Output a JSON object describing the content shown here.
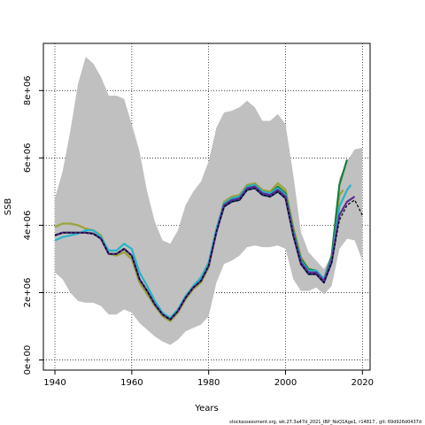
{
  "chart_data": {
    "type": "line",
    "title": "",
    "xlabel": "Years",
    "ylabel": "SSB",
    "xlim": [
      1937,
      2022
    ],
    "ylim": [
      -300000,
      9400000
    ],
    "x_ticks": [
      1940,
      1960,
      1980,
      2000,
      2020
    ],
    "y_ticks": [
      0,
      2000000,
      4000000,
      6000000,
      8000000
    ],
    "y_tick_labels": [
      "0e+00",
      "2e+06",
      "4e+06",
      "6e+06",
      "8e+06"
    ],
    "grid": true,
    "colors": {
      "band": "#c0c0c0",
      "main": "#000000",
      "retro_colors": [
        "#5c2d91",
        "#26b5c9",
        "#1a7d3a",
        "#9aa33a",
        "#1e3a7a"
      ]
    },
    "confidence_band": {
      "x": [
        1940,
        1942,
        1944,
        1946,
        1948,
        1950,
        1952,
        1954,
        1956,
        1958,
        1960,
        1962,
        1964,
        1966,
        1968,
        1970,
        1972,
        1974,
        1976,
        1978,
        1980,
        1982,
        1984,
        1986,
        1988,
        1990,
        1992,
        1994,
        1996,
        1998,
        2000,
        2002,
        2004,
        2006,
        2008,
        2010,
        2012,
        2014,
        2016,
        2018,
        2020
      ],
      "upper": [
        4800000,
        5600000,
        6800000,
        8200000,
        9000000,
        8800000,
        8400000,
        7850000,
        7850000,
        7750000,
        7000000,
        6200000,
        5000000,
        4100000,
        3550000,
        3450000,
        3850000,
        4600000,
        5000000,
        5300000,
        5900000,
        6900000,
        7350000,
        7400000,
        7500000,
        7700000,
        7500000,
        7100000,
        7100000,
        7300000,
        7000000,
        5500000,
        3800000,
        3200000,
        2950000,
        2700000,
        3100000,
        5400000,
        5900000,
        6250000,
        6300000
      ],
      "lower": [
        2600000,
        2400000,
        2000000,
        1750000,
        1700000,
        1700000,
        1600000,
        1350000,
        1350000,
        1500000,
        1400000,
        1100000,
        900000,
        700000,
        550000,
        450000,
        600000,
        850000,
        950000,
        1050000,
        1300000,
        2300000,
        2850000,
        2950000,
        3100000,
        3350000,
        3400000,
        3350000,
        3350000,
        3400000,
        3300000,
        2400000,
        2050000,
        2050000,
        2150000,
        1950000,
        2200000,
        3300000,
        3600000,
        3550000,
        2950000
      ]
    },
    "series": [
      {
        "x": [
          1940,
          1942,
          1944,
          1946,
          1948,
          1950,
          1952,
          1954,
          1956,
          1958,
          1960,
          1962,
          1964,
          1966,
          1968,
          1970,
          1972,
          1974,
          1976,
          1978,
          1980,
          1982,
          1984,
          1986,
          1988,
          1990,
          1992,
          1994,
          1996,
          1998,
          2000,
          2002,
          2004,
          2006,
          2008,
          2010,
          2012,
          2014,
          2016,
          2018,
          2020
        ],
        "values": [
          3700000,
          3780000,
          3780000,
          3780000,
          3780000,
          3750000,
          3600000,
          3150000,
          3150000,
          3300000,
          3100000,
          2400000,
          2050000,
          1650000,
          1350000,
          1200000,
          1450000,
          1850000,
          2150000,
          2350000,
          2800000,
          3800000,
          4550000,
          4700000,
          4750000,
          5050000,
          5100000,
          4900000,
          4850000,
          5000000,
          4800000,
          3700000,
          2850000,
          2550000,
          2550000,
          2300000,
          2900000,
          4150000,
          4600000,
          4750000,
          4300000
        ]
      },
      {
        "x": [
          1940,
          1942,
          1944,
          1946,
          1948,
          1950,
          1952,
          1954,
          1956,
          1958,
          1960,
          1962,
          1964,
          1966,
          1968,
          1970,
          1972,
          1974,
          1976,
          1978,
          1980,
          1982,
          1984,
          1986,
          1988,
          1990,
          1992,
          1994,
          1996,
          1998,
          2000,
          2002,
          2004,
          2006,
          2008,
          2010,
          2012,
          2014,
          2016,
          2018
        ],
        "values": [
          3700000,
          3780000,
          3780000,
          3780000,
          3780000,
          3750000,
          3600000,
          3150000,
          3150000,
          3300000,
          3100000,
          2400000,
          2050000,
          1650000,
          1350000,
          1200000,
          1450000,
          1850000,
          2150000,
          2350000,
          2800000,
          3800000,
          4600000,
          4750000,
          4800000,
          5100000,
          5150000,
          4950000,
          4900000,
          5050000,
          4850000,
          3750000,
          2900000,
          2600000,
          2600000,
          2350000,
          2950000,
          4300000,
          4700000,
          4850000
        ]
      },
      {
        "x": [
          1940,
          1942,
          1944,
          1946,
          1948,
          1950,
          1952,
          1954,
          1956,
          1958,
          1960,
          1962,
          1964,
          1966,
          1968,
          1970,
          1972,
          1974,
          1976,
          1978,
          1980,
          1982,
          1984,
          1986,
          1988,
          1990,
          1992,
          1994,
          1996,
          1998,
          2000,
          2002,
          2004,
          2006,
          2008,
          2010,
          2012,
          2014,
          2016,
          2017
        ],
        "values": [
          3550000,
          3650000,
          3700000,
          3750000,
          3850000,
          3850000,
          3650000,
          3250000,
          3250000,
          3450000,
          3300000,
          2600000,
          2200000,
          1750000,
          1400000,
          1250000,
          1500000,
          1900000,
          2200000,
          2450000,
          2900000,
          3900000,
          4650000,
          4800000,
          4850000,
          5150000,
          5200000,
          5000000,
          4950000,
          5100000,
          4900000,
          3800000,
          2950000,
          2650000,
          2650000,
          2400000,
          3000000,
          4550000,
          5050000,
          5200000
        ]
      },
      {
        "x": [
          1940,
          1942,
          1944,
          1946,
          1948,
          1950,
          1952,
          1954,
          1956,
          1958,
          1960,
          1962,
          1964,
          1966,
          1968,
          1970,
          1972,
          1974,
          1976,
          1978,
          1980,
          1982,
          1984,
          1986,
          1988,
          1990,
          1992,
          1994,
          1996,
          1998,
          2000,
          2002,
          2004,
          2006,
          2008,
          2010,
          2012,
          2014,
          2016
        ],
        "values": [
          3700000,
          3780000,
          3780000,
          3780000,
          3780000,
          3750000,
          3600000,
          3150000,
          3150000,
          3300000,
          3100000,
          2400000,
          2050000,
          1650000,
          1350000,
          1200000,
          1450000,
          1850000,
          2150000,
          2350000,
          2800000,
          3800000,
          4600000,
          4800000,
          4850000,
          5150000,
          5200000,
          5000000,
          4950000,
          5150000,
          4950000,
          3850000,
          3000000,
          2700000,
          2650000,
          2400000,
          3100000,
          5200000,
          5950000
        ]
      },
      {
        "x": [
          1940,
          1942,
          1944,
          1946,
          1948,
          1950,
          1952,
          1954,
          1956,
          1958,
          1960,
          1962,
          1964,
          1966,
          1968,
          1970,
          1972,
          1974,
          1976,
          1978,
          1980,
          1982,
          1984,
          1986,
          1988,
          1990,
          1992,
          1994,
          1996,
          1998,
          2000,
          2002,
          2004,
          2006,
          2008,
          2010,
          2012,
          2014,
          2015
        ],
        "values": [
          3950000,
          4050000,
          4050000,
          4000000,
          3900000,
          3850000,
          3700000,
          3150000,
          3100000,
          3200000,
          3000000,
          2300000,
          1950000,
          1600000,
          1300000,
          1150000,
          1400000,
          1800000,
          2100000,
          2300000,
          2750000,
          3850000,
          4700000,
          4850000,
          4900000,
          5200000,
          5250000,
          5050000,
          5000000,
          5250000,
          5050000,
          3950000,
          3050000,
          2700000,
          2650000,
          2400000,
          3000000,
          4900000,
          5050000
        ]
      },
      {
        "x": [
          1940,
          1942,
          1944,
          1946,
          1948,
          1950,
          1952,
          1954,
          1956,
          1958,
          1960,
          1962,
          1964,
          1966,
          1968,
          1970,
          1972,
          1974,
          1976,
          1978,
          1980,
          1982,
          1984,
          1986,
          1988,
          1990,
          1992,
          1994,
          1996,
          1998,
          2000,
          2002,
          2004,
          2006,
          2008,
          2010,
          2012,
          2014
        ],
        "values": [
          3700000,
          3780000,
          3780000,
          3780000,
          3780000,
          3750000,
          3600000,
          3150000,
          3150000,
          3300000,
          3100000,
          2400000,
          2050000,
          1650000,
          1350000,
          1200000,
          1450000,
          1850000,
          2150000,
          2350000,
          2800000,
          3800000,
          4550000,
          4700000,
          4750000,
          5050000,
          5100000,
          4900000,
          4850000,
          5000000,
          4800000,
          3700000,
          2850000,
          2550000,
          2550000,
          2300000,
          2900000,
          4300000
        ]
      }
    ]
  },
  "footer_text": "stockassessment.org, wk.27.3a47d_2021_IBP_NoQ1Age1, r14817 , git: 69d926d0437d"
}
